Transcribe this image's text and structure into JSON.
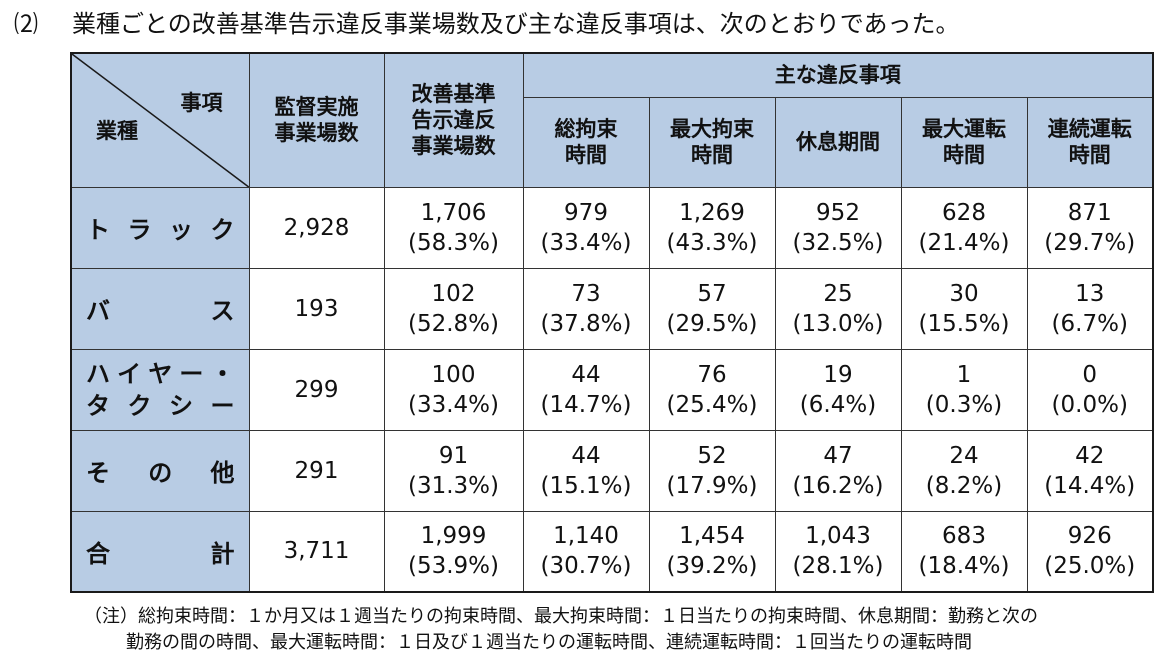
{
  "heading": {
    "number": "⑵",
    "text": "業種ごとの改善基準告示違反事業場数及び主な違反事項は、次のとおりであった。"
  },
  "table": {
    "corner": {
      "item": "事項",
      "industry": "業種"
    },
    "col_inspected": [
      "監督実施",
      "事業場数"
    ],
    "col_violation": [
      "改善基準",
      "告示違反",
      "事業場数"
    ],
    "group_header": "主な違反事項",
    "sub_headers": [
      [
        "総拘束",
        "時間"
      ],
      [
        "最大拘束",
        "時間"
      ],
      [
        "休息期間"
      ],
      [
        "最大運転",
        "時間"
      ],
      [
        "連続運転",
        "時間"
      ]
    ],
    "rows": [
      {
        "label_chars": [
          "ト",
          "ラ",
          "ッ",
          "ク"
        ],
        "inspected": "2,928",
        "cells": [
          [
            "1,706",
            "(58.3%)"
          ],
          [
            "979",
            "(33.4%)"
          ],
          [
            "1,269",
            "(43.3%)"
          ],
          [
            "952",
            "(32.5%)"
          ],
          [
            "628",
            "(21.4%)"
          ],
          [
            "871",
            "(29.7%)"
          ]
        ]
      },
      {
        "label_chars": [
          "バ",
          "ス"
        ],
        "inspected": "193",
        "cells": [
          [
            "102",
            "(52.8%)"
          ],
          [
            "73",
            "(37.8%)"
          ],
          [
            "57",
            "(29.5%)"
          ],
          [
            "25",
            "(13.0%)"
          ],
          [
            "30",
            "(15.5%)"
          ],
          [
            "13",
            "(6.7%)"
          ]
        ]
      },
      {
        "label_line1": [
          "ハ",
          "イ",
          "ヤ",
          "ー",
          "・"
        ],
        "label_line2": [
          "タ",
          "ク",
          "シ",
          "ー"
        ],
        "inspected": "299",
        "cells": [
          [
            "100",
            "(33.4%)"
          ],
          [
            "44",
            "(14.7%)"
          ],
          [
            "76",
            "(25.4%)"
          ],
          [
            "19",
            "(6.4%)"
          ],
          [
            "1",
            "(0.3%)"
          ],
          [
            "0",
            "(0.0%)"
          ]
        ]
      },
      {
        "label_chars": [
          "そ",
          "の",
          "他"
        ],
        "inspected": "291",
        "cells": [
          [
            "91",
            "(31.3%)"
          ],
          [
            "44",
            "(15.1%)"
          ],
          [
            "52",
            "(17.9%)"
          ],
          [
            "47",
            "(16.2%)"
          ],
          [
            "24",
            "(8.2%)"
          ],
          [
            "42",
            "(14.4%)"
          ]
        ]
      },
      {
        "label_chars": [
          "合",
          "計"
        ],
        "inspected": "3,711",
        "cells": [
          [
            "1,999",
            "(53.9%)"
          ],
          [
            "1,140",
            "(30.7%)"
          ],
          [
            "1,454",
            "(39.2%)"
          ],
          [
            "1,043",
            "(28.1%)"
          ],
          [
            "683",
            "(18.4%)"
          ],
          [
            "926",
            "(25.0%)"
          ]
        ]
      }
    ]
  },
  "note": {
    "line1": "（注）総拘束時間：１か月又は１週当たりの拘束時間、最大拘束時間：１日当たりの拘束時間、休息期間：勤務と次の",
    "line2": "勤務の間の時間、最大運転時間：１日及び１週当たりの運転時間、連続運転時間：１回当たりの運転時間"
  },
  "colors": {
    "header_bg": "#b8cce4",
    "border": "#1a1a1a"
  }
}
